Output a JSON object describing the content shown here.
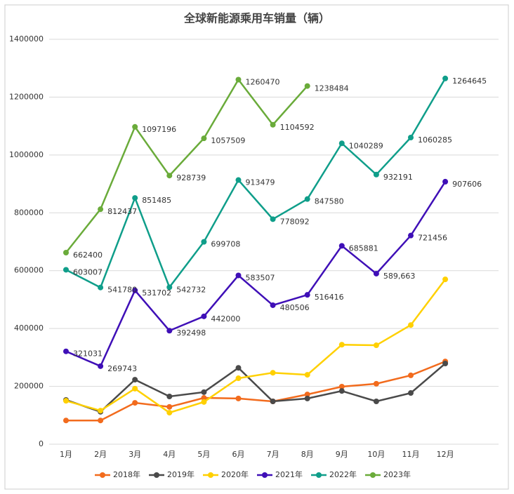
{
  "chart_data": {
    "type": "line",
    "title": "全球新能源乘用车销量（辆）",
    "categories": [
      "1月",
      "2月",
      "3月",
      "4月",
      "5月",
      "6月",
      "7月",
      "8月",
      "9月",
      "10月",
      "11月",
      "12月"
    ],
    "ylim": [
      0,
      1400000
    ],
    "yticks": [
      0,
      200000,
      400000,
      600000,
      800000,
      1000000,
      1200000,
      1400000
    ],
    "grid": true,
    "legend": "bottom",
    "series": [
      {
        "name": "2018年",
        "color": "#f26b1d",
        "values": [
          82000,
          82000,
          143000,
          129000,
          160000,
          158000,
          148000,
          172000,
          199000,
          209000,
          238000,
          286000
        ]
      },
      {
        "name": "2019年",
        "color": "#4a4a4a",
        "values": [
          153000,
          112000,
          223000,
          165000,
          180000,
          264000,
          148000,
          158000,
          184000,
          148000,
          177000,
          279000
        ]
      },
      {
        "name": "2020年",
        "color": "#ffd000",
        "values": [
          150000,
          116000,
          192000,
          109000,
          146000,
          228000,
          247000,
          240000,
          344000,
          342000,
          412000,
          570000
        ]
      },
      {
        "name": "2021年",
        "color": "#3f0fb7",
        "labels": true,
        "values": [
          321031,
          269743,
          531702,
          392498,
          442000,
          583507,
          480506,
          516416,
          685881,
          589663,
          721456,
          907606
        ],
        "value_labels": [
          "321031",
          "269743",
          "531702",
          "392498",
          "442000",
          "583507",
          "480506",
          "516416",
          "685881",
          "589,663",
          "721456",
          "907606"
        ]
      },
      {
        "name": "2022年",
        "color": "#0f9e8a",
        "labels": true,
        "values": [
          603007,
          541780,
          851485,
          542732,
          699708,
          913479,
          778092,
          847580,
          1040289,
          932191,
          1060285,
          1264645
        ]
      },
      {
        "name": "2023年",
        "color": "#6aab3a",
        "labels": true,
        "values": [
          662400,
          812437,
          1097196,
          928739,
          1057509,
          1260470,
          1104592,
          1238484,
          null,
          null,
          null,
          null
        ]
      }
    ]
  }
}
